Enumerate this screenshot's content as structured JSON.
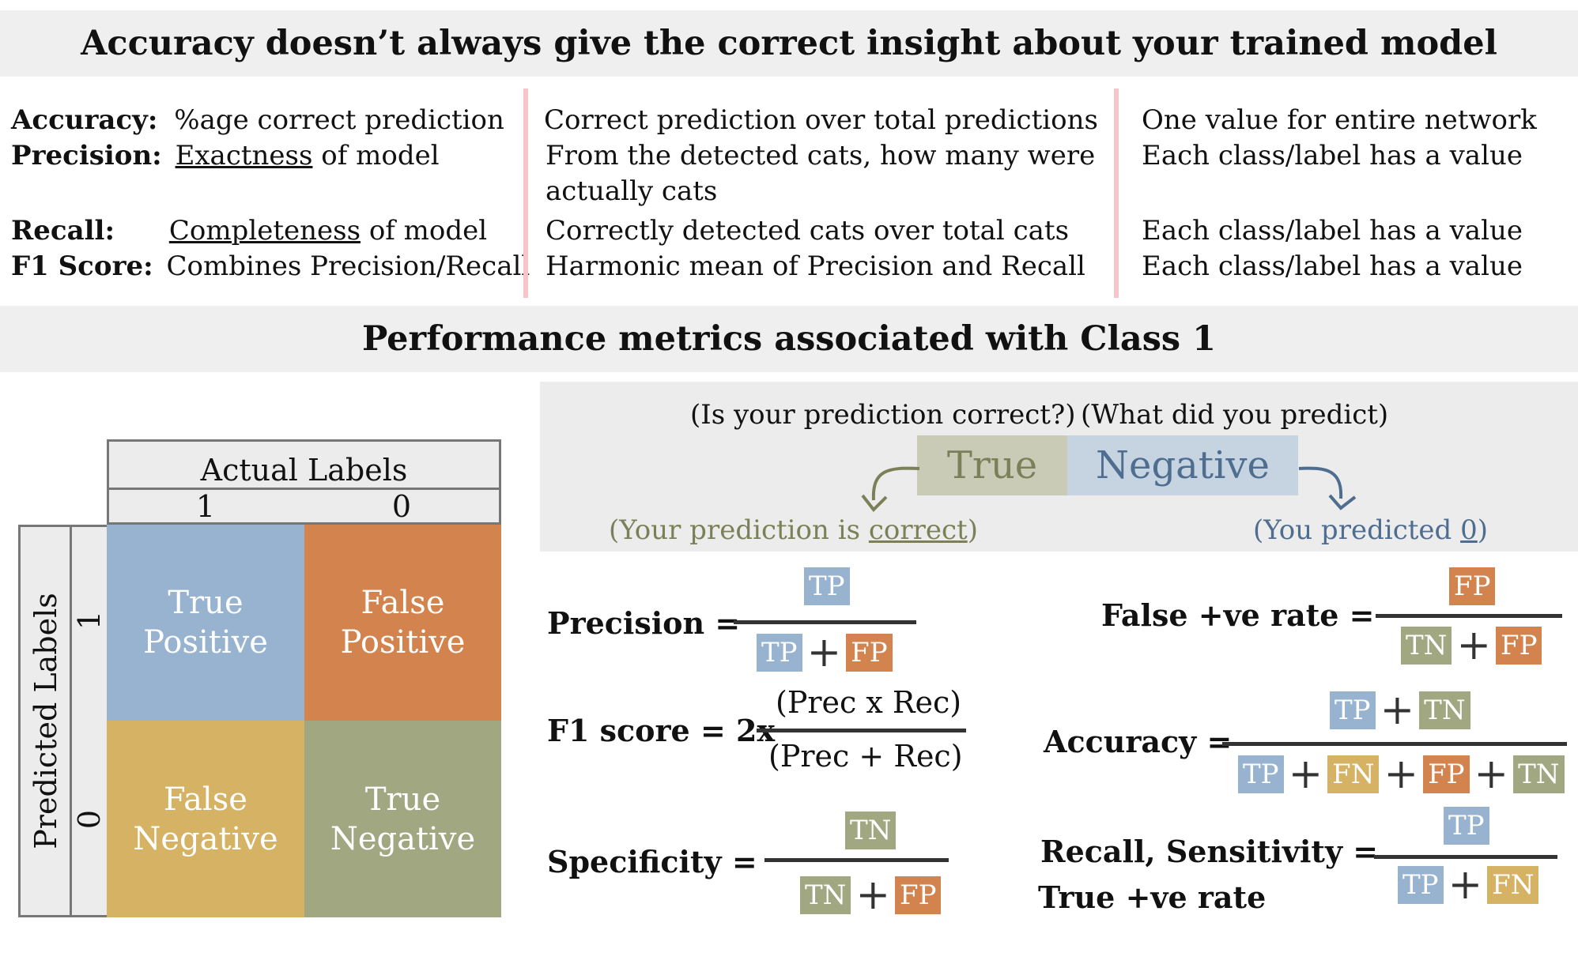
{
  "top_title": "Accuracy doesn’t always give the correct insight about your trained model",
  "metrics_table": [
    {
      "name": "Accuracy:",
      "pre": "%age correct prediction",
      "ul": "",
      "post": "",
      "desc": [
        "Correct prediction over total predictions"
      ],
      "scope": "One value for entire network"
    },
    {
      "name": "Precision:",
      "pre": "",
      "ul": "Exactness",
      "post": " of model",
      "desc": [
        "From the detected cats, how many were",
        "actually cats"
      ],
      "scope": "Each class/label has a value"
    },
    {
      "name": "Recall:",
      "pre": "",
      "ul": "Completeness",
      "post": " of model",
      "desc": [
        "Correctly detected cats over total cats"
      ],
      "scope": "Each class/label has a value"
    },
    {
      "name": "F1 Score:",
      "pre": "Combines Precision/Recall",
      "ul": "",
      "post": "",
      "desc": [
        "Harmonic mean of Precision and Recall"
      ],
      "scope": "Each class/label has a value"
    }
  ],
  "mid_title": "Performance metrics associated with Class 1",
  "matrix": {
    "actual_header": "Actual Labels",
    "actual_1": "1",
    "actual_0": "0",
    "predicted_header": "Predicted Labels",
    "predicted_1": "1",
    "predicted_0": "0",
    "cells": {
      "tp": [
        "True",
        "Positive"
      ],
      "fp": [
        "False",
        "Positive"
      ],
      "fn": [
        "False",
        "Negative"
      ],
      "tn": [
        "True",
        "Negative"
      ]
    }
  },
  "explain": {
    "q1": "(Is your prediction correct?)",
    "q2": "(What did you predict)",
    "word1": "True",
    "word2": "Negative",
    "note1_pre": "(Your prediction is ",
    "note1_ul": "correct",
    "note1_post": ")",
    "note2_pre": "(You predicted ",
    "note2_ul": "0",
    "note2_post": ")"
  },
  "formulas": {
    "precision": {
      "label": "Precision =",
      "num": [
        "TP"
      ],
      "den": [
        "TP",
        "FP"
      ]
    },
    "f1": {
      "label": "F1 score = 2x",
      "num_text": "(Prec x Rec)",
      "den_text": "(Prec + Rec)"
    },
    "specificity": {
      "label": "Specificity =",
      "num": [
        "TN"
      ],
      "den": [
        "TN",
        "FP"
      ]
    },
    "fpr": {
      "label": "False +ve rate =",
      "num": [
        "FP"
      ],
      "den": [
        "TN",
        "FP"
      ]
    },
    "accuracy": {
      "label": "Accuracy =",
      "num": [
        "TP",
        "TN"
      ],
      "den": [
        "TP",
        "FN",
        "FP",
        "TN"
      ]
    },
    "recall": {
      "label": "Recall, Sensitivity =",
      "label2": "True +ve rate",
      "num": [
        "TP"
      ],
      "den": [
        "TP",
        "FN"
      ]
    }
  },
  "colors": {
    "tp": "#97b3d0",
    "fp": "#d3844e",
    "fn": "#d6b264",
    "tn": "#a1a780",
    "true_green": "#7c8059",
    "negative_blue": "#4e6d8f",
    "divider": "#f5c5ca"
  }
}
